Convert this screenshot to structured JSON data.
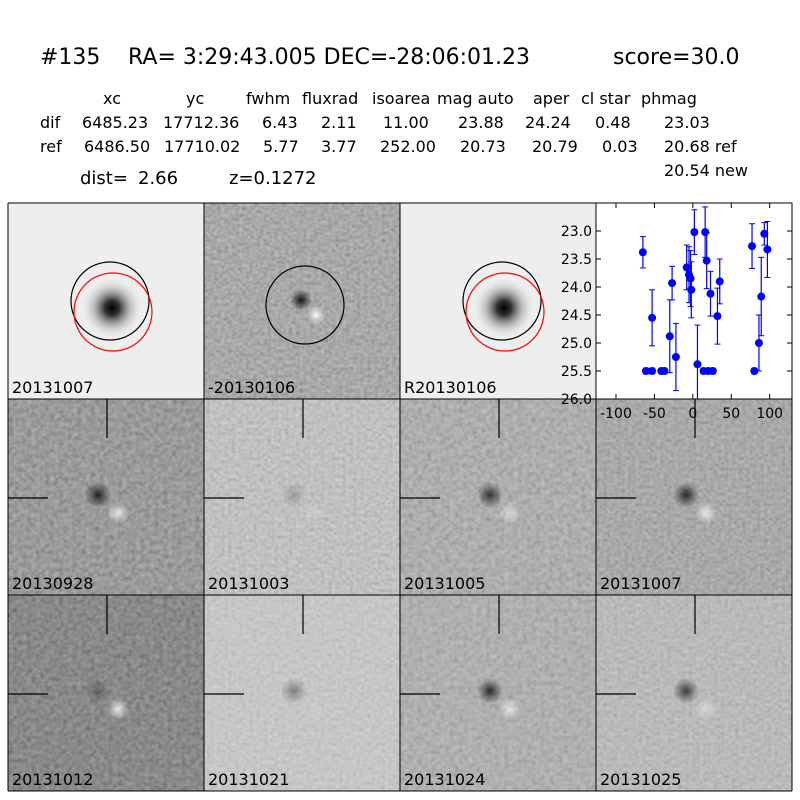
{
  "header": {
    "id": "#135",
    "coords": "RA= 3:29:43.005 DEC=-28:06:01.23",
    "score": "score=30.0"
  },
  "table": {
    "columns": [
      "xc",
      "yc",
      "fwhm",
      "fluxrad",
      "isoarea",
      "mag auto",
      "aper",
      "cl star",
      "phmag"
    ],
    "rows": [
      {
        "label": "dif",
        "cells": [
          "6485.23",
          "17712.36",
          "6.43",
          "2.11",
          "11.00",
          "23.88",
          "24.24",
          "0.48",
          "23.03"
        ]
      },
      {
        "label": "ref",
        "cells": [
          "6486.50",
          "17710.02",
          "5.77",
          "3.77",
          "252.00",
          "20.73",
          "20.79",
          "0.03",
          "20.68 ref"
        ]
      }
    ],
    "extra": "20.54 new"
  },
  "dist": {
    "label": "dist=",
    "value": "2.66"
  },
  "redshift": "z=0.1272",
  "stamps": [
    {
      "label": "20131007"
    },
    {
      "label": "-20130106"
    },
    {
      "label": "R20130106"
    },
    {
      "label": "20130928"
    },
    {
      "label": "20131003"
    },
    {
      "label": "20131005"
    },
    {
      "label": "20131007",
      "color": "#ff0000"
    },
    {
      "label": "20131012"
    },
    {
      "label": "20131021"
    },
    {
      "label": "20131024"
    },
    {
      "label": "20131025"
    }
  ],
  "chart_data": {
    "type": "scatter",
    "color": "#0000ff",
    "x": [
      -65,
      -61,
      -53,
      -53,
      -41,
      -37,
      -30,
      -27,
      -22,
      -8,
      -5,
      -3,
      -2,
      2,
      6,
      14,
      16,
      18,
      20,
      23,
      26,
      32,
      35,
      77,
      80,
      86,
      89,
      93,
      97
    ],
    "values": [
      23.38,
      25.5,
      25.5,
      24.55,
      25.5,
      25.5,
      24.88,
      23.93,
      25.25,
      23.65,
      23.78,
      23.85,
      24.05,
      23.02,
      25.38,
      25.5,
      23.02,
      23.53,
      25.5,
      24.12,
      25.5,
      24.52,
      23.9,
      23.27,
      25.5,
      25.0,
      24.17,
      23.05,
      23.33
    ],
    "errors": [
      0.28,
      0.05,
      0.05,
      0.5,
      0.05,
      0.05,
      0.65,
      0.3,
      0.6,
      0.4,
      0.5,
      0.5,
      0.5,
      0.4,
      0.7,
      0.05,
      0.45,
      0.5,
      0.05,
      0.4,
      0.05,
      0.5,
      0.4,
      0.4,
      0.05,
      0.5,
      0.7,
      0.2,
      0.5
    ],
    "xlim": [
      -126,
      129
    ],
    "ylim": [
      26.0,
      22.5
    ],
    "xticks": [
      -100,
      -50,
      0,
      50,
      100
    ],
    "yticks": [
      {
        "value": 23,
        "label": "23.0"
      },
      {
        "value": 23.5,
        "label": "23.5"
      },
      {
        "value": 24,
        "label": "24.0"
      },
      {
        "value": 24.5,
        "label": "24.5"
      },
      {
        "value": 25,
        "label": "25.0"
      },
      {
        "value": 25.5,
        "label": "25.5"
      },
      {
        "value": 26,
        "label": "26.0"
      }
    ]
  }
}
